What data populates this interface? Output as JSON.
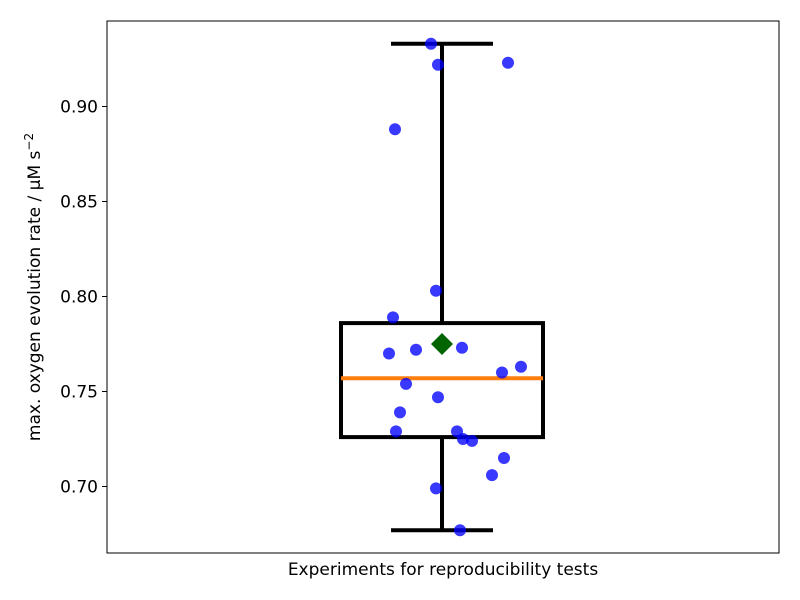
{
  "chart_data": {
    "type": "box",
    "xlabel": "Experiments for reproducibility tests",
    "ylabel": "max. oxygen evolution rate / μM s",
    "ylabel_superscript": "−2",
    "ylim": [
      0.665,
      0.945
    ],
    "yticks": [
      0.7,
      0.75,
      0.8,
      0.85,
      0.9
    ],
    "ytick_labels": [
      "0.70",
      "0.75",
      "0.80",
      "0.85",
      "0.90"
    ],
    "grid": false,
    "box": {
      "q1": 0.726,
      "q3": 0.786,
      "median": 0.757,
      "mean": 0.775,
      "whisker_low": 0.677,
      "whisker_high": 0.933
    },
    "points": [
      {
        "x": -0.11,
        "y": 0.933
      },
      {
        "x": -0.04,
        "y": 0.922
      },
      {
        "x": 0.66,
        "y": 0.923
      },
      {
        "x": -0.47,
        "y": 0.888
      },
      {
        "x": -0.06,
        "y": 0.803
      },
      {
        "x": -0.49,
        "y": 0.789
      },
      {
        "x": -0.53,
        "y": 0.77
      },
      {
        "x": -0.26,
        "y": 0.772
      },
      {
        "x": 0.2,
        "y": 0.773
      },
      {
        "x": 0.79,
        "y": 0.763
      },
      {
        "x": 0.6,
        "y": 0.76
      },
      {
        "x": -0.36,
        "y": 0.754
      },
      {
        "x": -0.04,
        "y": 0.747
      },
      {
        "x": -0.42,
        "y": 0.739
      },
      {
        "x": -0.46,
        "y": 0.729
      },
      {
        "x": 0.15,
        "y": 0.729
      },
      {
        "x": 0.21,
        "y": 0.725
      },
      {
        "x": 0.3,
        "y": 0.724
      },
      {
        "x": 0.62,
        "y": 0.715
      },
      {
        "x": 0.5,
        "y": 0.706
      },
      {
        "x": -0.06,
        "y": 0.699
      },
      {
        "x": 0.18,
        "y": 0.677
      }
    ],
    "colors": {
      "box": "#000000",
      "median": "#ff7f0e",
      "mean": "#006400",
      "points": "#0000ff"
    }
  }
}
